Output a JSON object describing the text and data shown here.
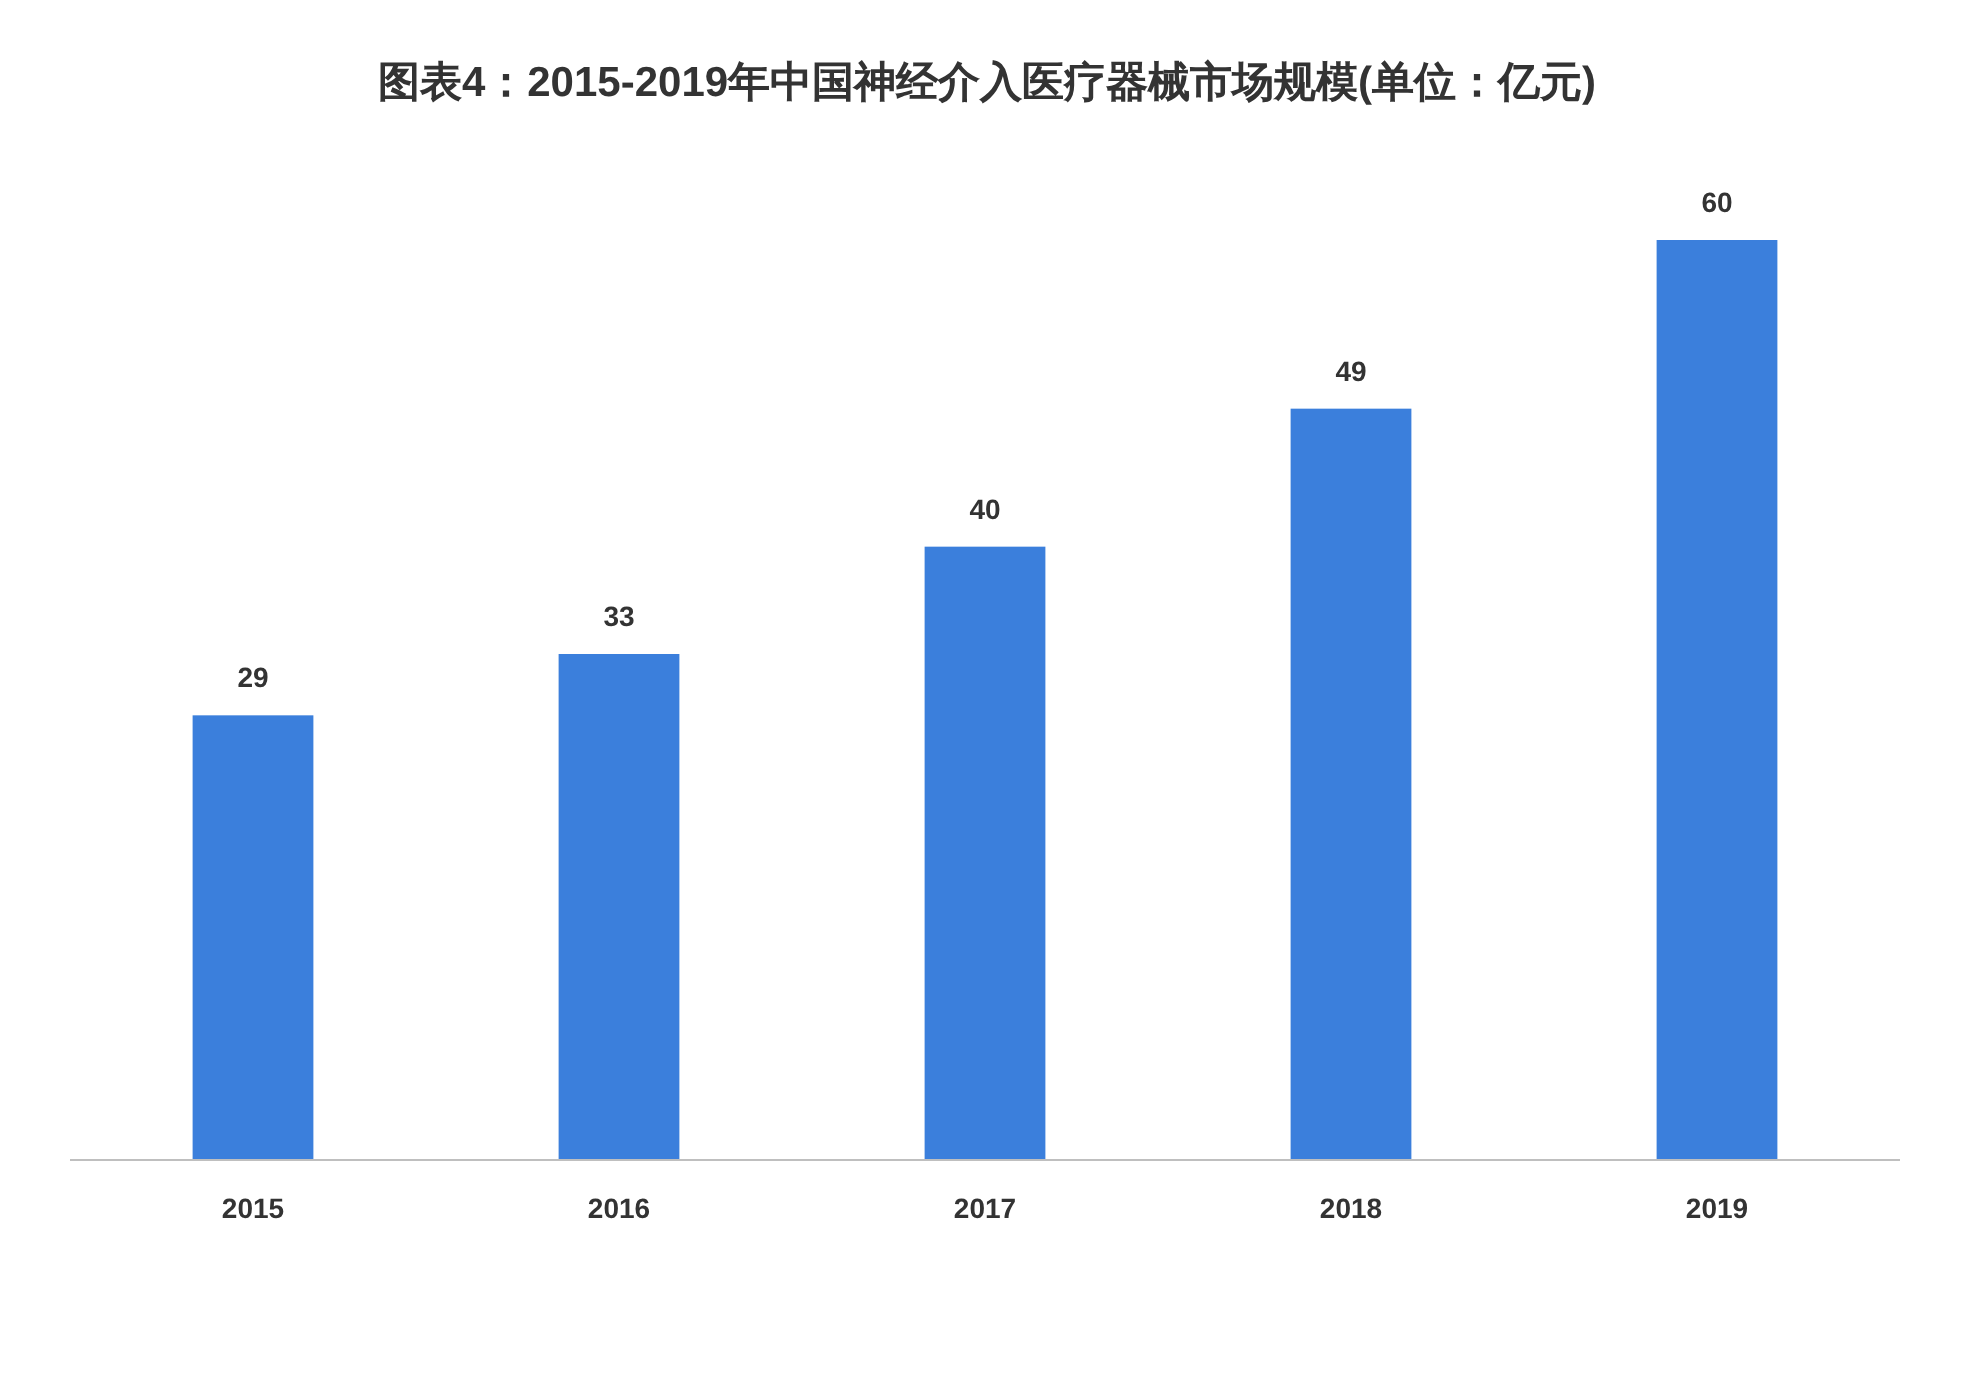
{
  "chart_data": {
    "type": "bar",
    "title": "图表4：2015-2019年中国神经介入医疗器械市场规模(单位：亿元)",
    "categories": [
      "2015",
      "2016",
      "2017",
      "2018",
      "2019"
    ],
    "values": [
      29,
      33,
      40,
      49,
      60
    ],
    "color": "#3b7fdc",
    "data_labels": true
  }
}
